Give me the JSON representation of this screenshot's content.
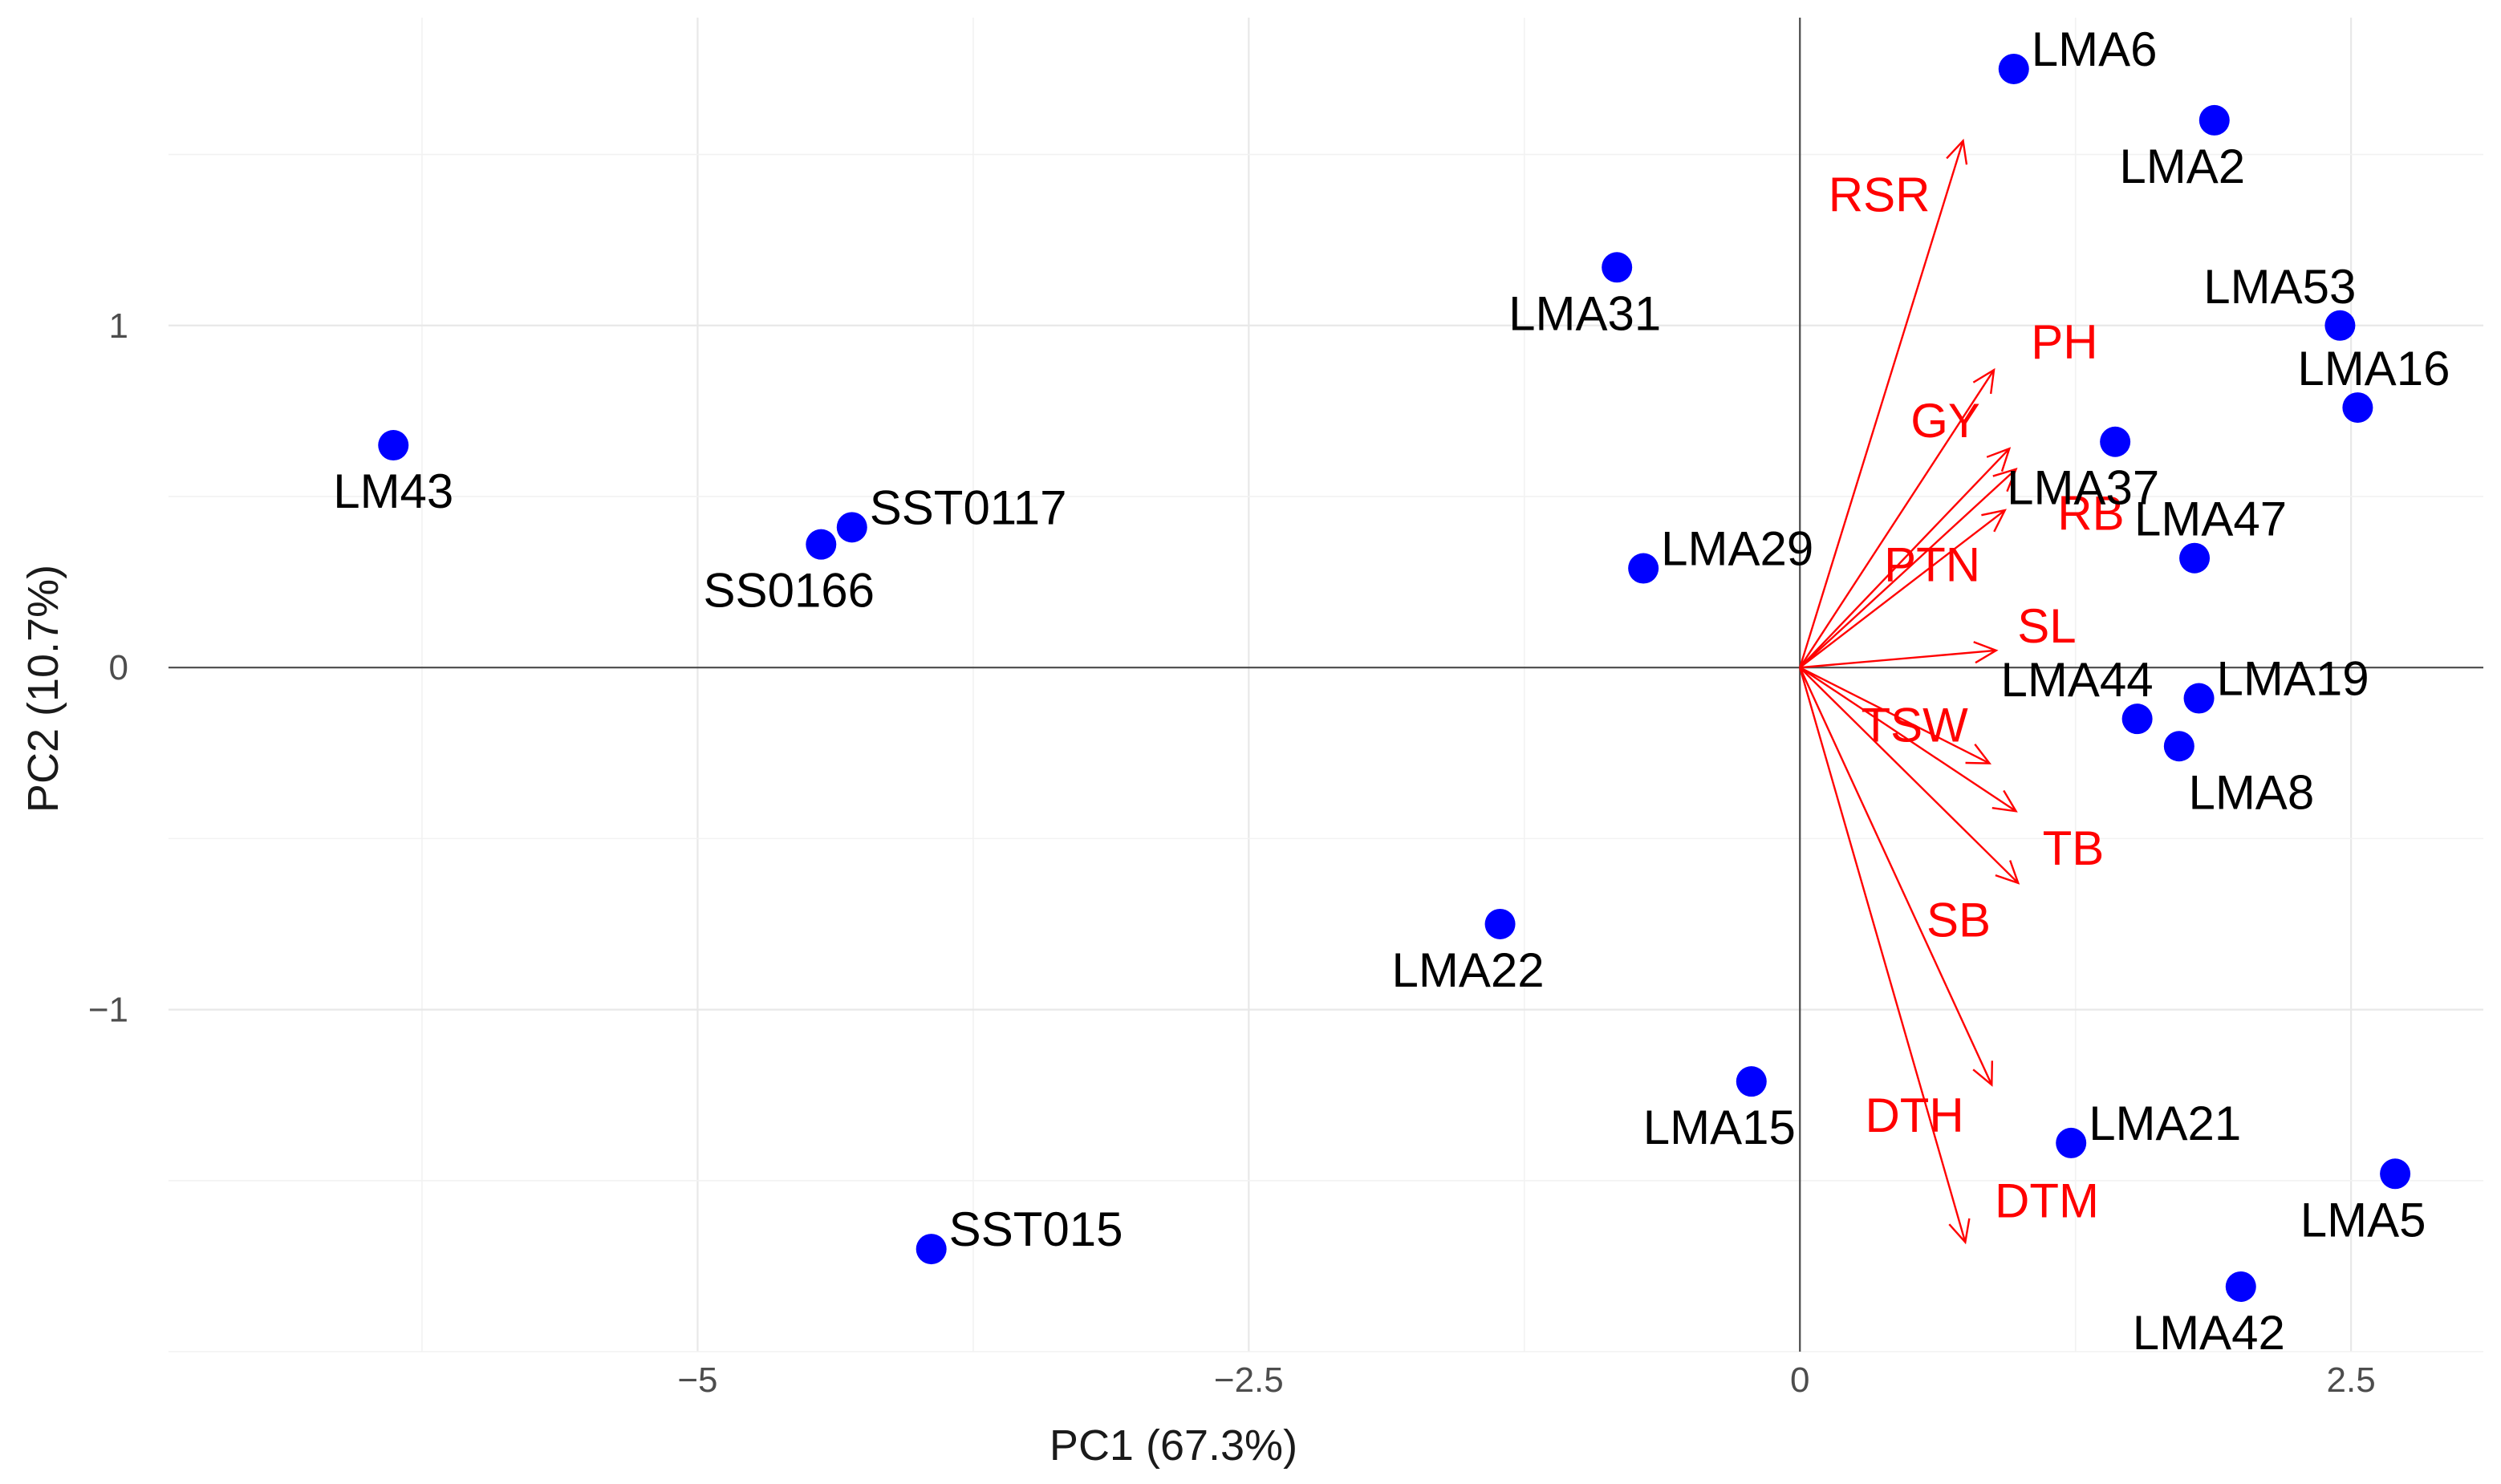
{
  "chart_data": {
    "type": "scatter",
    "subtype": "pca-biplot",
    "title": "",
    "xlabel": "PC1 (67.3%)",
    "ylabel": "PC2 (10.7%)",
    "xlim": [
      -7.4,
      3.1
    ],
    "ylim": [
      -2.0,
      1.9
    ],
    "xticks": [
      {
        "value": -5,
        "label": "−5"
      },
      {
        "value": -2.5,
        "label": "−2.5"
      },
      {
        "value": 0,
        "label": "0"
      },
      {
        "value": 2.5,
        "label": "2.5"
      }
    ],
    "yticks": [
      {
        "value": 1,
        "label": "1"
      },
      {
        "value": 0,
        "label": "0"
      },
      {
        "value": -1,
        "label": "−1"
      }
    ],
    "grid": true,
    "point_color": "#0000ff",
    "arrow_color": "#ff0000",
    "points": [
      {
        "label": "LMA6",
        "x": 0.97,
        "y": 1.75,
        "anchor": "upper-right"
      },
      {
        "label": "LMA2",
        "x": 1.88,
        "y": 1.6,
        "anchor": "below-left"
      },
      {
        "label": "LMA53",
        "x": 2.45,
        "y": 1.0,
        "anchor": "upper-left"
      },
      {
        "label": "LMA16",
        "x": 2.53,
        "y": 0.76,
        "anchor": "upper"
      },
      {
        "label": "LMA37",
        "x": 1.43,
        "y": 0.66,
        "anchor": "below-left"
      },
      {
        "label": "LMA47",
        "x": 1.79,
        "y": 0.32,
        "anchor": "upper"
      },
      {
        "label": "LMA19",
        "x": 1.81,
        "y": -0.09,
        "anchor": "upper-right"
      },
      {
        "label": "LMA44",
        "x": 1.53,
        "y": -0.15,
        "anchor": "upper-left"
      },
      {
        "label": "LMA8",
        "x": 1.72,
        "y": -0.23,
        "anchor": "below-right"
      },
      {
        "label": "LMA31",
        "x": -0.83,
        "y": 1.17,
        "anchor": "below-left"
      },
      {
        "label": "LMA29",
        "x": -0.71,
        "y": 0.29,
        "anchor": "upper-right"
      },
      {
        "label": "LM43",
        "x": -6.38,
        "y": 0.65,
        "anchor": "below"
      },
      {
        "label": "SST0117",
        "x": -4.3,
        "y": 0.41,
        "anchor": "upper-right"
      },
      {
        "label": "SS0166",
        "x": -4.44,
        "y": 0.36,
        "anchor": "below-left"
      },
      {
        "label": "LMA22",
        "x": -1.36,
        "y": -0.75,
        "anchor": "below-left"
      },
      {
        "label": "LMA15",
        "x": -0.22,
        "y": -1.21,
        "anchor": "below-left"
      },
      {
        "label": "SST015",
        "x": -3.94,
        "y": -1.7,
        "anchor": "upper-right"
      },
      {
        "label": "LMA21",
        "x": 1.23,
        "y": -1.39,
        "anchor": "upper-right"
      },
      {
        "label": "LMA5",
        "x": 2.7,
        "y": -1.48,
        "anchor": "below-left"
      },
      {
        "label": "LMA42",
        "x": 2.0,
        "y": -1.81,
        "anchor": "below-left"
      }
    ],
    "loadings": [
      {
        "label": "RSR",
        "x": 0.74,
        "y": 1.54,
        "label_x": 0.36,
        "label_y": 1.38
      },
      {
        "label": "PH",
        "x": 0.88,
        "y": 0.87,
        "label_x": 1.2,
        "label_y": 0.95
      },
      {
        "label": "GY",
        "x": 0.95,
        "y": 0.64,
        "label_x": 0.66,
        "label_y": 0.72
      },
      {
        "label": "RB",
        "x": 0.98,
        "y": 0.58,
        "label_x": 1.32,
        "label_y": 0.45
      },
      {
        "label": "PTN",
        "x": 0.93,
        "y": 0.46,
        "label_x": 0.6,
        "label_y": 0.3
      },
      {
        "label": "SL",
        "x": 0.89,
        "y": 0.05,
        "label_x": 1.12,
        "label_y": 0.12
      },
      {
        "label": "TSW",
        "x": 0.86,
        "y": -0.28,
        "label_x": 0.52,
        "label_y": -0.17
      },
      {
        "label": "TB",
        "x": 0.98,
        "y": -0.42,
        "label_x": 1.24,
        "label_y": -0.53
      },
      {
        "label": "SB",
        "x": 0.99,
        "y": -0.63,
        "label_x": 0.72,
        "label_y": -0.74
      },
      {
        "label": "DTH",
        "x": 0.87,
        "y": -1.22,
        "label_x": 0.52,
        "label_y": -1.31
      },
      {
        "label": "DTM",
        "x": 0.75,
        "y": -1.68,
        "label_x": 1.12,
        "label_y": -1.56
      }
    ]
  }
}
